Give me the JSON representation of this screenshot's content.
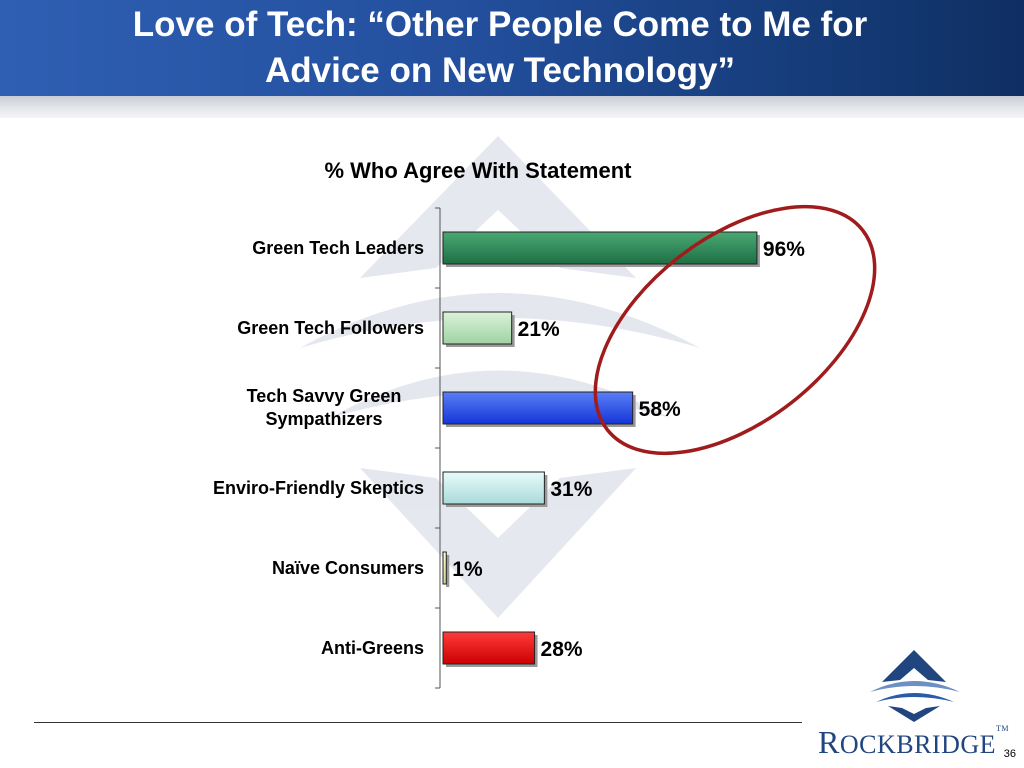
{
  "slide": {
    "title_line1": "Love of Tech: “Other People Come to Me for",
    "title_line2": "Advice on New Technology”",
    "page_number": "36"
  },
  "logo": {
    "text_big": "R",
    "text_rest": "OCKBRIDGE",
    "tm": "TM"
  },
  "colors": {
    "header_left": "#2f5fb3",
    "header_right": "#0f2f63",
    "highlight_ellipse": "#a01c1c"
  },
  "chart_data": {
    "type": "bar",
    "orientation": "horizontal",
    "title": "% Who Agree With Statement",
    "categories": [
      [
        "Green Tech Leaders"
      ],
      [
        "Green Tech Followers"
      ],
      [
        "Tech Savvy Green",
        "Sympathizers"
      ],
      [
        "Enviro-Friendly Skeptics"
      ],
      [
        "Naïve Consumers"
      ],
      [
        "Anti-Greens"
      ]
    ],
    "values": [
      96,
      21,
      58,
      31,
      1,
      28
    ],
    "value_labels": [
      "96%",
      "21%",
      "58%",
      "31%",
      "1%",
      "28%"
    ],
    "bar_colors": [
      [
        "#4aa874",
        "#1e6f45"
      ],
      [
        "#d9f3d9",
        "#9fd3a3"
      ],
      [
        "#5a7ff5",
        "#1535d8"
      ],
      [
        "#e8fbfb",
        "#a9dada"
      ],
      [
        "#fbfbd6",
        "#d4d48c"
      ],
      [
        "#ff3b3b",
        "#cc0000"
      ]
    ],
    "xlim": [
      0,
      100
    ],
    "grid": false,
    "legend": "none",
    "highlight": "ellipse around Green Tech Leaders, Green Tech Followers and Tech Savvy Green Sympathizers values"
  }
}
